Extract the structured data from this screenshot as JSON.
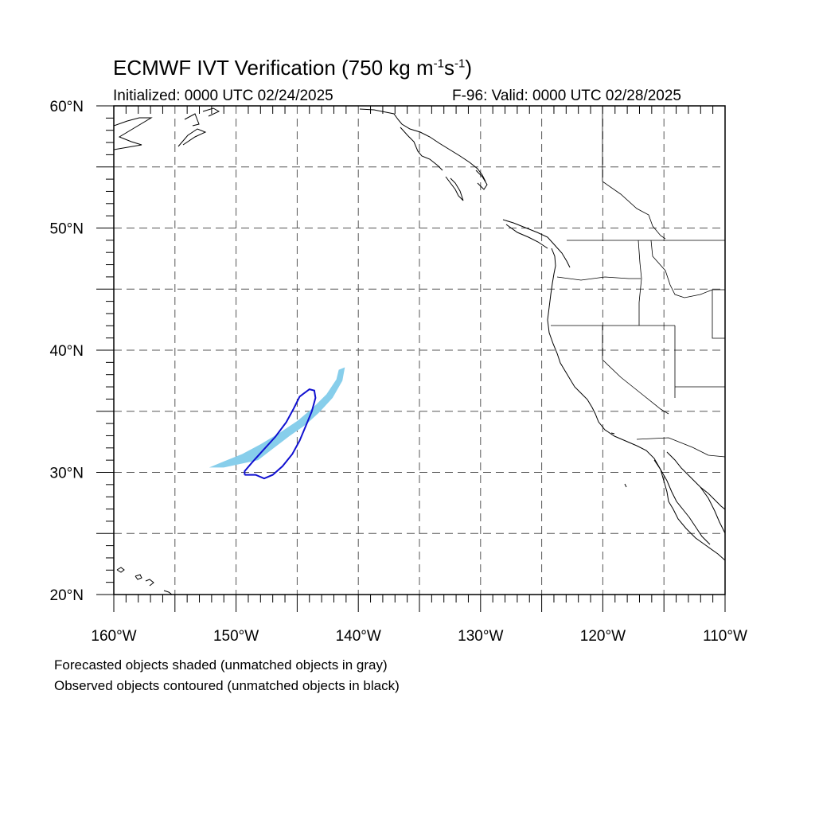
{
  "title": {
    "prefix": "ECMWF IVT Verification (750 kg m",
    "exp1": "-1",
    "mid": "s",
    "exp2": "-1",
    "suffix": ")"
  },
  "initialized": "Initialized: 0000 UTC 02/24/2025",
  "valid": "F-96: Valid: 0000 UTC 02/28/2025",
  "lat_labels": [
    "60°N",
    "50°N",
    "40°N",
    "30°N",
    "20°N"
  ],
  "lon_labels": [
    "160°W",
    "150°W",
    "140°W",
    "130°W",
    "120°W",
    "110°W"
  ],
  "map": {
    "lon_range": [
      -160,
      -110
    ],
    "lat_range": [
      20,
      60
    ],
    "grid_interval_deg": 5,
    "label_interval_deg": 10,
    "grid_style": "dashed"
  },
  "objects": {
    "forecast_color": "#87CEEB",
    "observed_color": "#1010D0",
    "forecast_shape": [
      [
        -152.2,
        30.4
      ],
      [
        -151.0,
        30.9
      ],
      [
        -149.5,
        31.5
      ],
      [
        -148.0,
        32.3
      ],
      [
        -146.5,
        33.2
      ],
      [
        -145.0,
        34.2
      ],
      [
        -143.8,
        35.2
      ],
      [
        -142.6,
        36.4
      ],
      [
        -141.8,
        37.6
      ],
      [
        -141.6,
        38.4
      ],
      [
        -141.1,
        38.6
      ],
      [
        -141.3,
        37.5
      ],
      [
        -142.1,
        36.1
      ],
      [
        -143.2,
        34.9
      ],
      [
        -144.3,
        33.9
      ],
      [
        -145.6,
        33.0
      ],
      [
        -146.9,
        32.0
      ],
      [
        -148.2,
        31.0
      ],
      [
        -149.6,
        30.7
      ],
      [
        -151.0,
        30.4
      ]
    ],
    "observed_contour": [
      [
        -149.3,
        29.8
      ],
      [
        -148.4,
        29.8
      ],
      [
        -147.7,
        29.5
      ],
      [
        -147.0,
        29.8
      ],
      [
        -146.2,
        30.5
      ],
      [
        -145.4,
        31.5
      ],
      [
        -144.8,
        32.6
      ],
      [
        -144.3,
        33.8
      ],
      [
        -143.8,
        35.0
      ],
      [
        -143.5,
        36.1
      ],
      [
        -143.6,
        36.7
      ],
      [
        -144.0,
        36.8
      ],
      [
        -144.8,
        36.2
      ],
      [
        -145.3,
        35.2
      ],
      [
        -145.9,
        34.1
      ],
      [
        -146.8,
        32.9
      ],
      [
        -147.8,
        31.8
      ],
      [
        -148.7,
        30.8
      ],
      [
        -149.3,
        30.1
      ]
    ]
  },
  "notes": [
    "Forecasted objects shaded (unmatched objects in gray)",
    "Observed objects contoured (unmatched objects in black)"
  ]
}
